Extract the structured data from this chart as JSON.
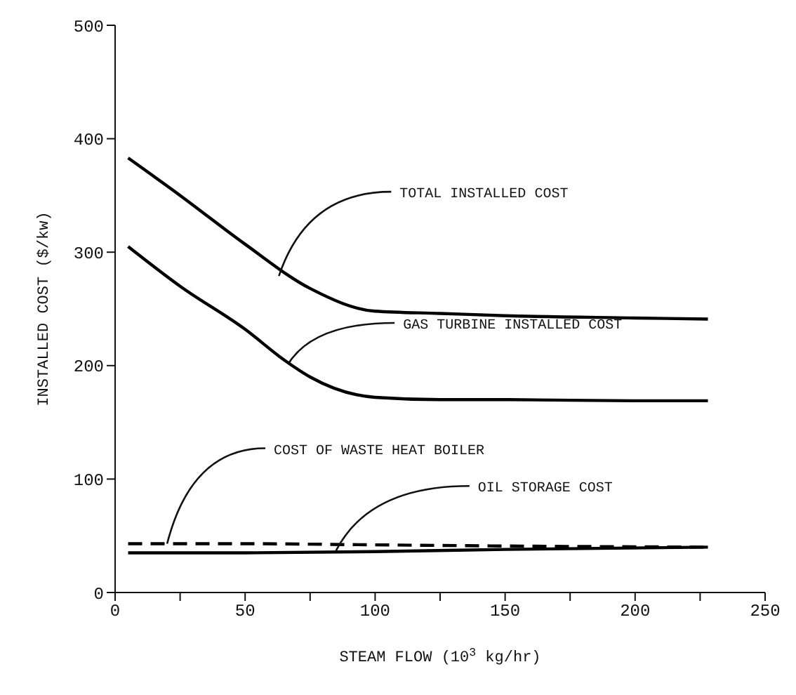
{
  "chart_data": {
    "type": "line",
    "xlabel": "STEAM FLOW (10$^{3}$ kg/hr)",
    "ylabel": "INSTALLED COST ($/kw)",
    "xlim": [
      0,
      250
    ],
    "ylim": [
      0,
      500
    ],
    "xticks": [
      0,
      {
        "value": 25,
        "label": null
      },
      50,
      {
        "value": 75,
        "label": null
      },
      100,
      {
        "value": 125,
        "label": null
      },
      150,
      {
        "value": 175,
        "label": null
      },
      200,
      {
        "value": 225,
        "label": null
      },
      250
    ],
    "yticks": [
      0,
      100,
      200,
      300,
      400,
      500
    ],
    "grid": false,
    "marker": "none",
    "series": [
      {
        "color": "#000000",
        "line_style": "solid",
        "x": [
          5,
          25,
          50,
          75,
          100,
          125,
          150,
          200,
          228
        ],
        "values": [
          383,
          350,
          307,
          268,
          248,
          246,
          244,
          242,
          241
        ]
      },
      {
        "color": "#000000",
        "line_style": "solid",
        "x": [
          5,
          25,
          50,
          65,
          75,
          100,
          125,
          150,
          200,
          228
        ],
        "values": [
          305,
          270,
          232,
          205,
          190,
          172,
          170,
          170,
          169,
          169
        ]
      },
      {
        "color": "#000000",
        "line_style": "dashed",
        "x": [
          5,
          50,
          100,
          150,
          228
        ],
        "values": [
          43,
          43,
          42,
          41,
          40
        ]
      },
      {
        "color": "#000000",
        "line_style": "solid",
        "x": [
          5,
          50,
          100,
          150,
          228
        ],
        "values": [
          35,
          35,
          36,
          38,
          40
        ]
      }
    ],
    "annotations": [
      {
        "text": "TOTAL INSTALLED COST",
        "x": 63,
        "y": 279
      },
      {
        "text": "GAS TURBINE INSTALLED COST",
        "x": 67,
        "y": 203
      },
      {
        "text": "COST OF WASTE HEAT BOILER",
        "x": 20,
        "y": 43
      },
      {
        "text": "OIL STORAGE COST",
        "x": 85,
        "y": 37
      }
    ]
  }
}
